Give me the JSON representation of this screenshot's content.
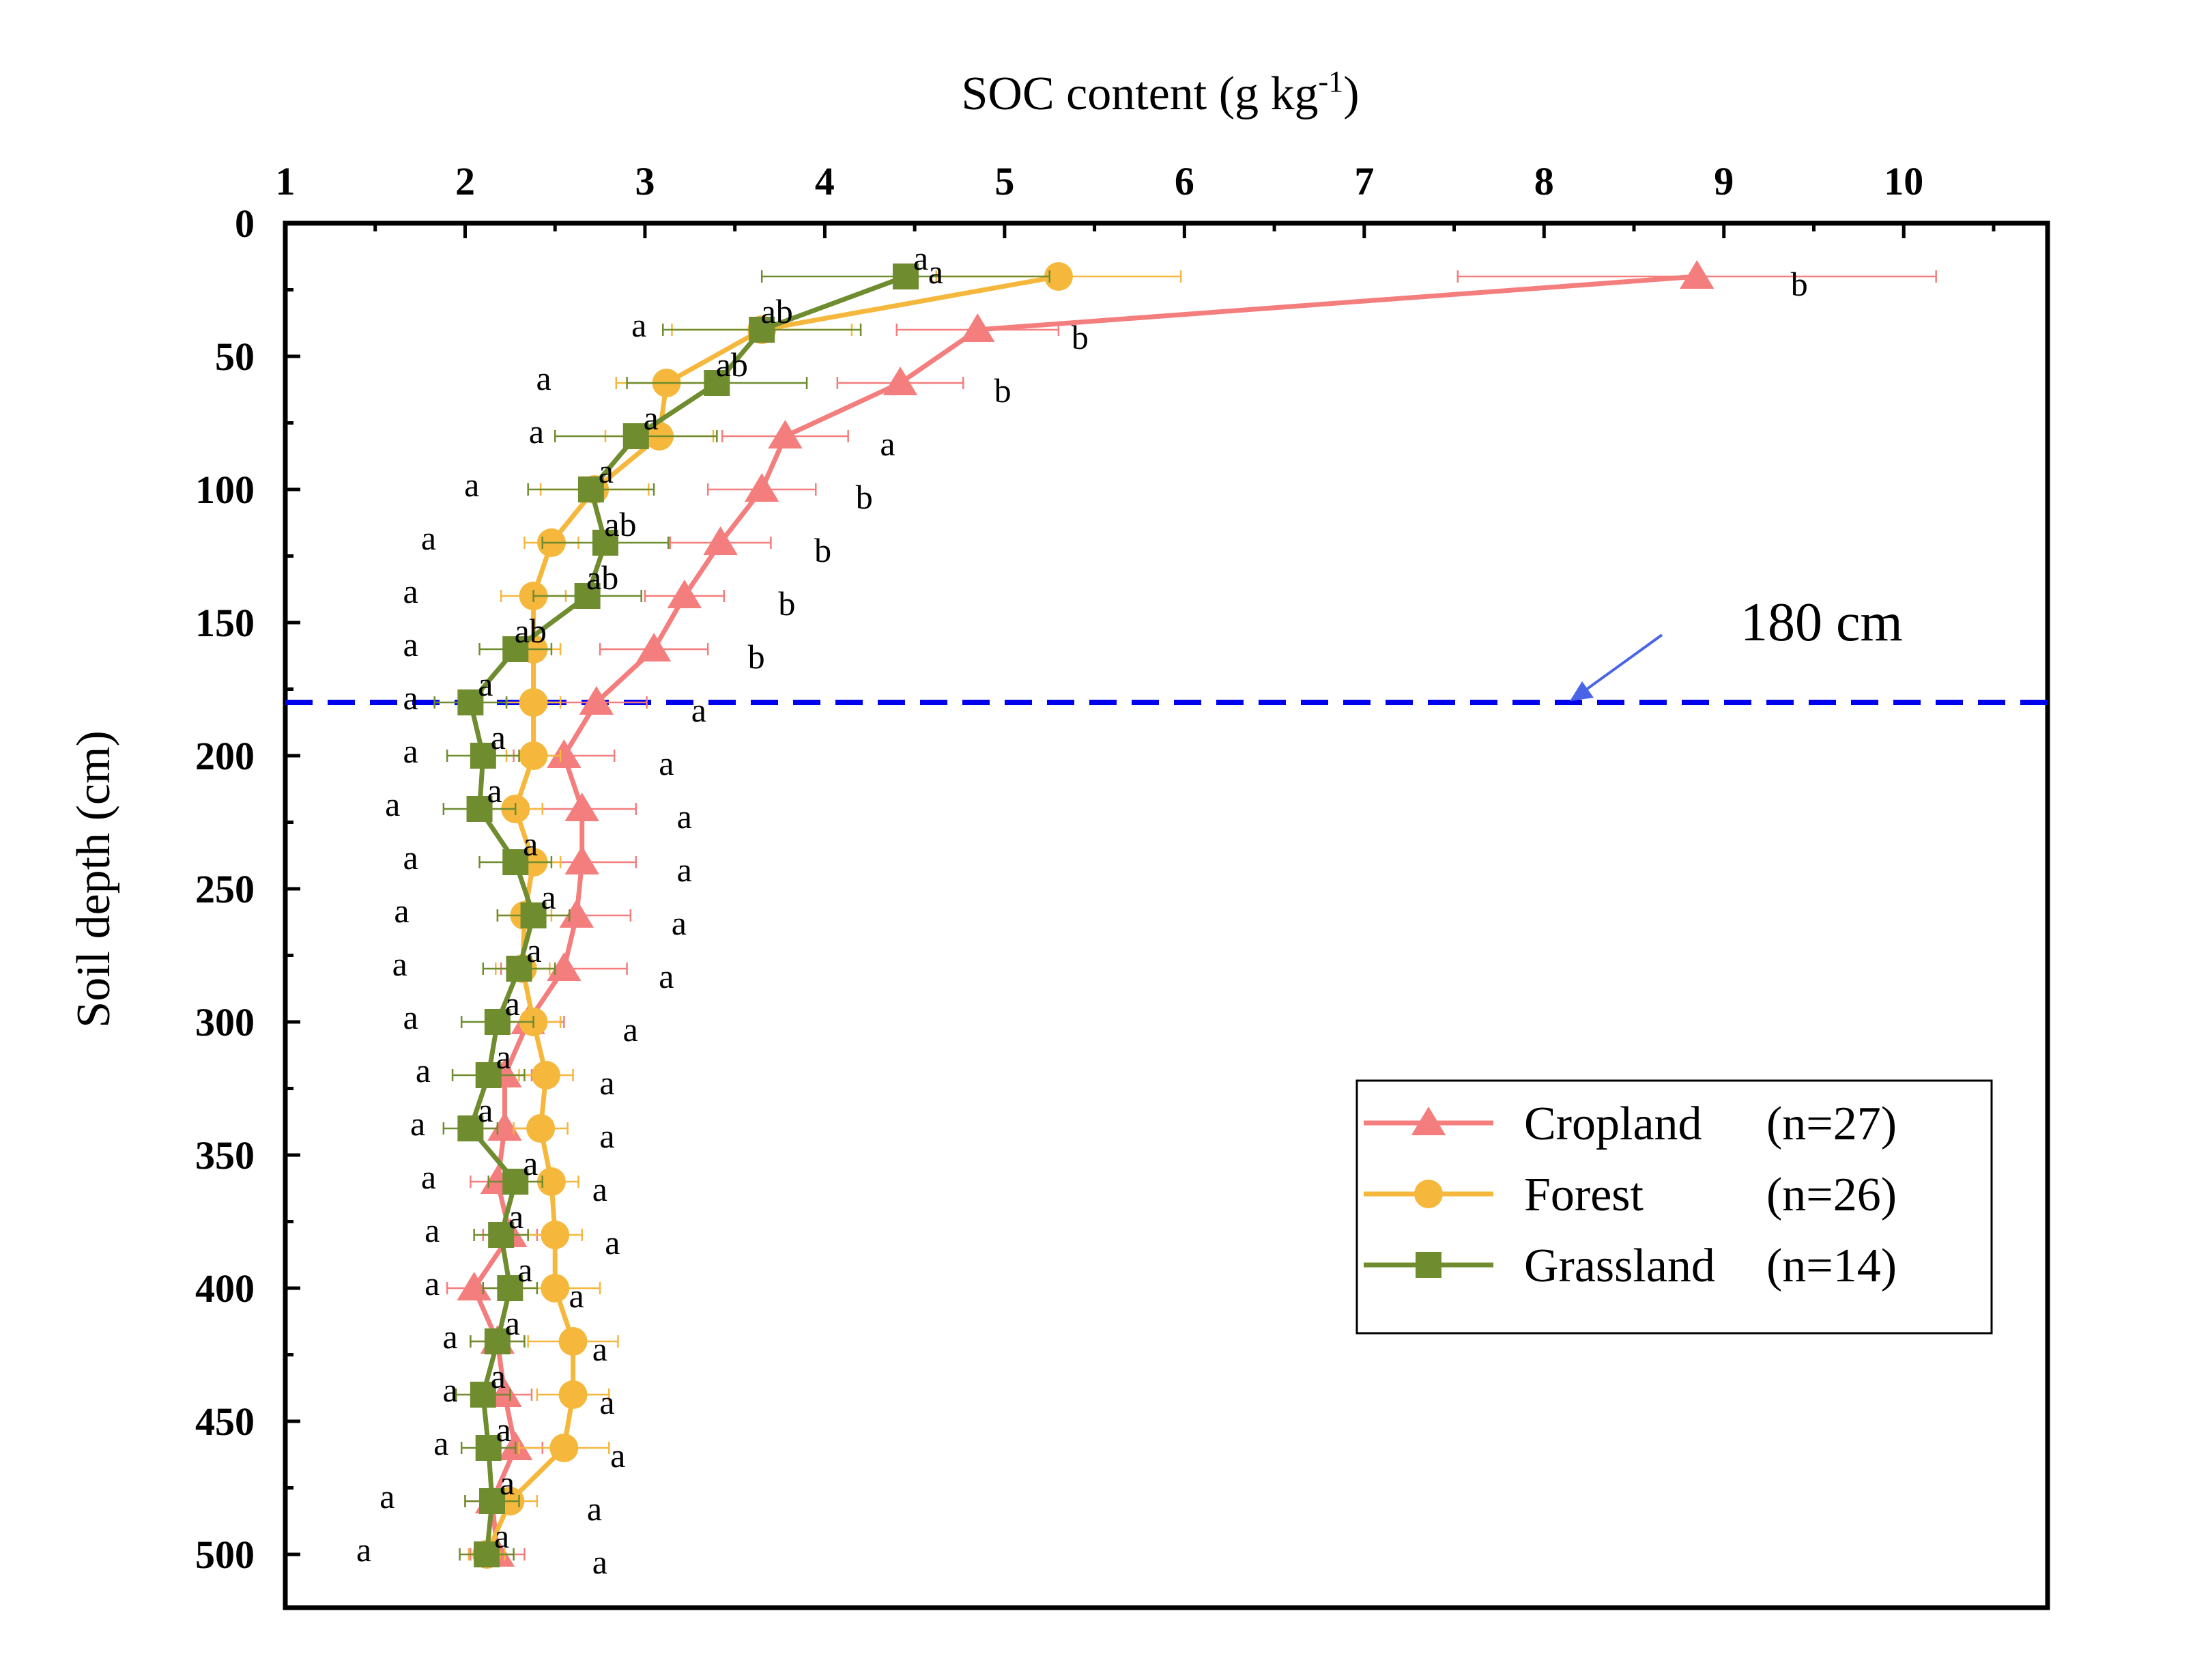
{
  "chart_data": {
    "type": "line",
    "xlabel": "SOC content (g kg",
    "xlabel_sup": "-1",
    "xlabel_end": ")",
    "ylabel": "Soil depth (cm)",
    "xlim": [
      1,
      10.8
    ],
    "ylim": [
      0,
      520
    ],
    "x_axis_position": "top",
    "y_inverted": true,
    "grid": false,
    "legend_position": "bottom-right",
    "x_ticks": [
      "1",
      "2",
      "3",
      "4",
      "5",
      "6",
      "7",
      "8",
      "9",
      "10"
    ],
    "y_ticks": [
      "0",
      "50",
      "100",
      "150",
      "200",
      "250",
      "300",
      "350",
      "400",
      "450",
      "500"
    ],
    "depths": [
      20,
      40,
      60,
      80,
      100,
      120,
      140,
      160,
      180,
      200,
      220,
      240,
      260,
      280,
      300,
      320,
      340,
      360,
      380,
      400,
      420,
      440,
      460,
      480,
      500
    ],
    "reference_line": {
      "depth": 180,
      "label": "180 cm",
      "color": "#0000ee"
    },
    "series": [
      {
        "name": "Cropland",
        "n_label": "(n=27)",
        "color": "#f47d7d",
        "marker": "triangle",
        "values": [
          8.85,
          4.85,
          4.42,
          3.78,
          3.65,
          3.42,
          3.22,
          3.05,
          2.73,
          2.55,
          2.65,
          2.65,
          2.62,
          2.55,
          2.35,
          2.22,
          2.22,
          2.18,
          2.25,
          2.05,
          2.18,
          2.22,
          2.28,
          2.15,
          2.18
        ],
        "errors": [
          1.33,
          0.45,
          0.35,
          0.35,
          0.3,
          0.28,
          0.22,
          0.3,
          0.28,
          0.28,
          0.3,
          0.3,
          0.3,
          0.35,
          0.2,
          0.15,
          0.15,
          0.15,
          0.15,
          0.15,
          0.15,
          0.15,
          0.15,
          0.15,
          0.15
        ],
        "labels": [
          "b",
          "b",
          "b",
          "a",
          "b",
          "b",
          "b",
          "b",
          "a",
          "a",
          "a",
          "a",
          "a",
          "a",
          "a",
          "a",
          "a",
          "a",
          "a",
          "a",
          "a",
          "a",
          "a",
          "a",
          "a"
        ]
      },
      {
        "name": "Forest",
        "n_label": "(n=26)",
        "color": "#f5b83d",
        "marker": "circle",
        "values": [
          5.3,
          3.65,
          3.12,
          3.08,
          2.72,
          2.48,
          2.38,
          2.38,
          2.38,
          2.38,
          2.28,
          2.38,
          2.33,
          2.32,
          2.38,
          2.45,
          2.42,
          2.48,
          2.5,
          2.5,
          2.6,
          2.6,
          2.55,
          2.25,
          2.12
        ],
        "errors": [
          0.68,
          0.5,
          0.28,
          0.3,
          0.3,
          0.15,
          0.18,
          0.15,
          0.15,
          0.15,
          0.15,
          0.15,
          0.15,
          0.15,
          0.15,
          0.15,
          0.15,
          0.15,
          0.15,
          0.25,
          0.25,
          0.2,
          0.25,
          0.15,
          0.1
        ],
        "labels": [
          "a",
          "a",
          "a",
          "a",
          "a",
          "a",
          "a",
          "a",
          "a",
          "a",
          "a",
          "a",
          "a",
          "a",
          "a",
          "a",
          "a",
          "a",
          "a",
          "a",
          "a",
          "a",
          "a",
          "a",
          "a"
        ]
      },
      {
        "name": "Grassland",
        "n_label": "(n=14)",
        "color": "#6f8c2e",
        "marker": "square",
        "values": [
          4.45,
          3.65,
          3.4,
          2.95,
          2.7,
          2.78,
          2.68,
          2.28,
          2.03,
          2.1,
          2.08,
          2.28,
          2.38,
          2.3,
          2.18,
          2.13,
          2.03,
          2.28,
          2.2,
          2.25,
          2.18,
          2.1,
          2.13,
          2.15,
          2.12
        ],
        "errors": [
          0.8,
          0.55,
          0.5,
          0.45,
          0.35,
          0.35,
          0.3,
          0.2,
          0.2,
          0.2,
          0.2,
          0.2,
          0.2,
          0.2,
          0.2,
          0.2,
          0.15,
          0.15,
          0.15,
          0.15,
          0.15,
          0.15,
          0.15,
          0.15,
          0.15
        ],
        "labels": [
          "a",
          "ab",
          "ab",
          "a",
          "a",
          "ab",
          "ab",
          "ab",
          "a",
          "a",
          "a",
          "a",
          "a",
          "a",
          "a",
          "a",
          "a",
          "a",
          "a",
          "a",
          "a",
          "a",
          "a",
          "a",
          "a"
        ]
      }
    ]
  }
}
